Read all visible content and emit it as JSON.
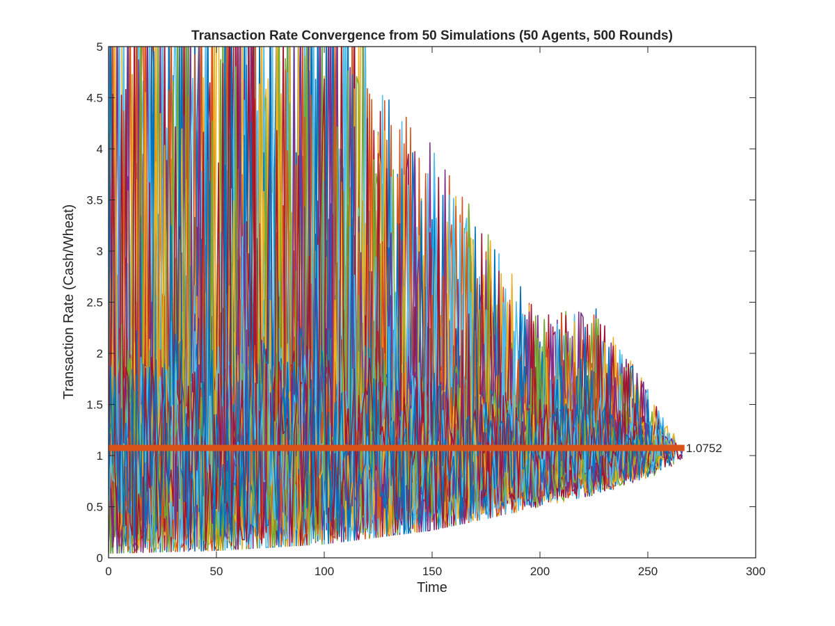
{
  "chart_data": {
    "type": "line",
    "title": "Transaction Rate Convergence from 50 Simulations (50 Agents, 500 Rounds)",
    "xlabel": "Time",
    "ylabel": "Transaction Rate (Cash/Wheat)",
    "xlim": [
      0,
      300
    ],
    "ylim": [
      0,
      5
    ],
    "xticks": [
      "0",
      "50",
      "100",
      "150",
      "200",
      "250",
      "300"
    ],
    "yticks": [
      "0",
      "0.5",
      "1",
      "1.5",
      "2",
      "2.5",
      "3",
      "3.5",
      "4",
      "4.5",
      "5"
    ],
    "grid": false,
    "legend": "none",
    "simulation_count": 50,
    "series_colors": [
      "#0072BD",
      "#D95319",
      "#EDB120",
      "#7E2F8E",
      "#77AC30",
      "#4DBEEE",
      "#A2142F"
    ],
    "convergence": {
      "value": 1.0752,
      "label": "1.0752",
      "x_range": [
        0,
        267
      ],
      "color": "#D95319"
    },
    "envelope": {
      "note_x": [
        0,
        50,
        100,
        150,
        200,
        225,
        250,
        265
      ],
      "upper": [
        5,
        5,
        5,
        3.9,
        2.3,
        2.4,
        1.65,
        1.05
      ],
      "lower": [
        0.05,
        0.08,
        0.15,
        0.3,
        0.55,
        0.65,
        0.8,
        0.95
      ],
      "end_x": [
        240,
        268
      ]
    }
  }
}
